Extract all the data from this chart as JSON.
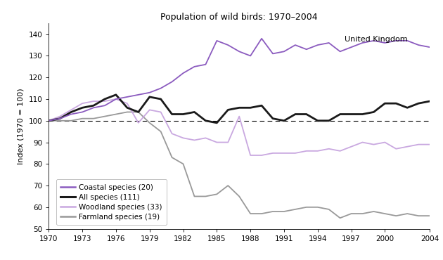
{
  "title": "Population of wild birds: 1970–2004",
  "annotation": "United Kingdom",
  "ylabel": "Index (1970 = 100)",
  "ylim": [
    50,
    145
  ],
  "xlim": [
    1970,
    2004
  ],
  "yticks": [
    50,
    60,
    70,
    80,
    90,
    100,
    110,
    120,
    130,
    140
  ],
  "xticks": [
    1970,
    1973,
    1976,
    1979,
    1982,
    1985,
    1988,
    1991,
    1994,
    1997,
    2000,
    2004
  ],
  "background_color": "#ffffff",
  "series": {
    "coastal": {
      "label": "Coastal species (20)",
      "color": "#8b5bbf",
      "linewidth": 1.3,
      "years": [
        1970,
        1971,
        1972,
        1973,
        1974,
        1975,
        1976,
        1977,
        1978,
        1979,
        1980,
        1981,
        1982,
        1983,
        1984,
        1985,
        1986,
        1987,
        1988,
        1989,
        1990,
        1991,
        1992,
        1993,
        1994,
        1995,
        1996,
        1997,
        1998,
        1999,
        2000,
        2001,
        2002,
        2003,
        2004
      ],
      "values": [
        100,
        101,
        103,
        104,
        106,
        107,
        110,
        111,
        112,
        113,
        115,
        118,
        122,
        125,
        126,
        137,
        135,
        132,
        130,
        138,
        131,
        132,
        135,
        133,
        135,
        136,
        132,
        134,
        136,
        137,
        136,
        137,
        137,
        135,
        134
      ]
    },
    "all": {
      "label": "All species (111)",
      "color": "#1a1a1a",
      "linewidth": 2.0,
      "years": [
        1970,
        1971,
        1972,
        1973,
        1974,
        1975,
        1976,
        1977,
        1978,
        1979,
        1980,
        1981,
        1982,
        1983,
        1984,
        1985,
        1986,
        1987,
        1988,
        1989,
        1990,
        1991,
        1992,
        1993,
        1994,
        1995,
        1996,
        1997,
        1998,
        1999,
        2000,
        2001,
        2002,
        2003,
        2004
      ],
      "values": [
        100,
        101,
        104,
        106,
        107,
        110,
        112,
        106,
        104,
        111,
        110,
        103,
        103,
        104,
        100,
        99,
        105,
        106,
        106,
        107,
        101,
        100,
        103,
        103,
        100,
        100,
        103,
        103,
        103,
        104,
        108,
        108,
        106,
        108,
        109
      ]
    },
    "woodland": {
      "label": "Woodland species (33)",
      "color": "#c9a8e0",
      "linewidth": 1.3,
      "years": [
        1970,
        1971,
        1972,
        1973,
        1974,
        1975,
        1976,
        1977,
        1978,
        1979,
        1980,
        1981,
        1982,
        1983,
        1984,
        1985,
        1986,
        1987,
        1988,
        1989,
        1990,
        1991,
        1992,
        1993,
        1994,
        1995,
        1996,
        1997,
        1998,
        1999,
        2000,
        2001,
        2002,
        2003,
        2004
      ],
      "values": [
        100,
        102,
        105,
        108,
        109,
        109,
        110,
        108,
        99,
        105,
        104,
        94,
        92,
        91,
        92,
        90,
        90,
        102,
        84,
        84,
        85,
        85,
        85,
        86,
        86,
        87,
        86,
        88,
        90,
        89,
        90,
        87,
        88,
        89,
        89
      ]
    },
    "farmland": {
      "label": "Farmland species (19)",
      "color": "#999999",
      "linewidth": 1.3,
      "years": [
        1970,
        1971,
        1972,
        1973,
        1974,
        1975,
        1976,
        1977,
        1978,
        1979,
        1980,
        1981,
        1982,
        1983,
        1984,
        1985,
        1986,
        1987,
        1988,
        1989,
        1990,
        1991,
        1992,
        1993,
        1994,
        1995,
        1996,
        1997,
        1998,
        1999,
        2000,
        2001,
        2002,
        2003,
        2004
      ],
      "values": [
        100,
        100,
        100,
        101,
        101,
        102,
        103,
        104,
        104,
        99,
        95,
        83,
        80,
        65,
        65,
        66,
        70,
        65,
        57,
        57,
        58,
        58,
        59,
        60,
        60,
        59,
        55,
        57,
        57,
        58,
        57,
        56,
        57,
        56,
        56
      ]
    }
  }
}
